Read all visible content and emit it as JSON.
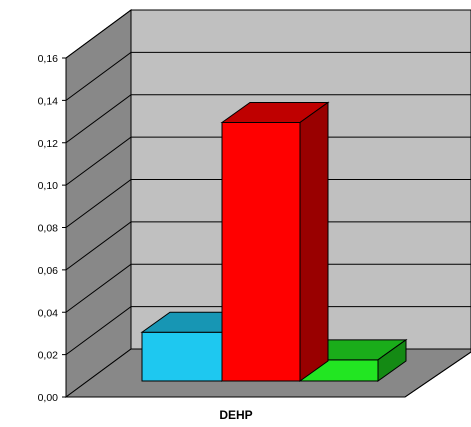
{
  "chart_data": {
    "type": "bar",
    "categories": [
      "DEHP"
    ],
    "series": [
      {
        "values": [
          0.023
        ],
        "color": "#1ec8f0"
      },
      {
        "values": [
          0.122
        ],
        "color": "#ff0000"
      },
      {
        "values": [
          0.01
        ],
        "color": "#22e622"
      }
    ],
    "ylim": [
      0,
      0.16
    ],
    "yticks": [
      "0,00",
      "0,02",
      "0,04",
      "0,06",
      "0,08",
      "0,10",
      "0,12",
      "0,14",
      "0,16"
    ],
    "grid": true,
    "style": "3d-bar",
    "wall_color": "#c0c0c0",
    "floor_color": "#888888"
  }
}
